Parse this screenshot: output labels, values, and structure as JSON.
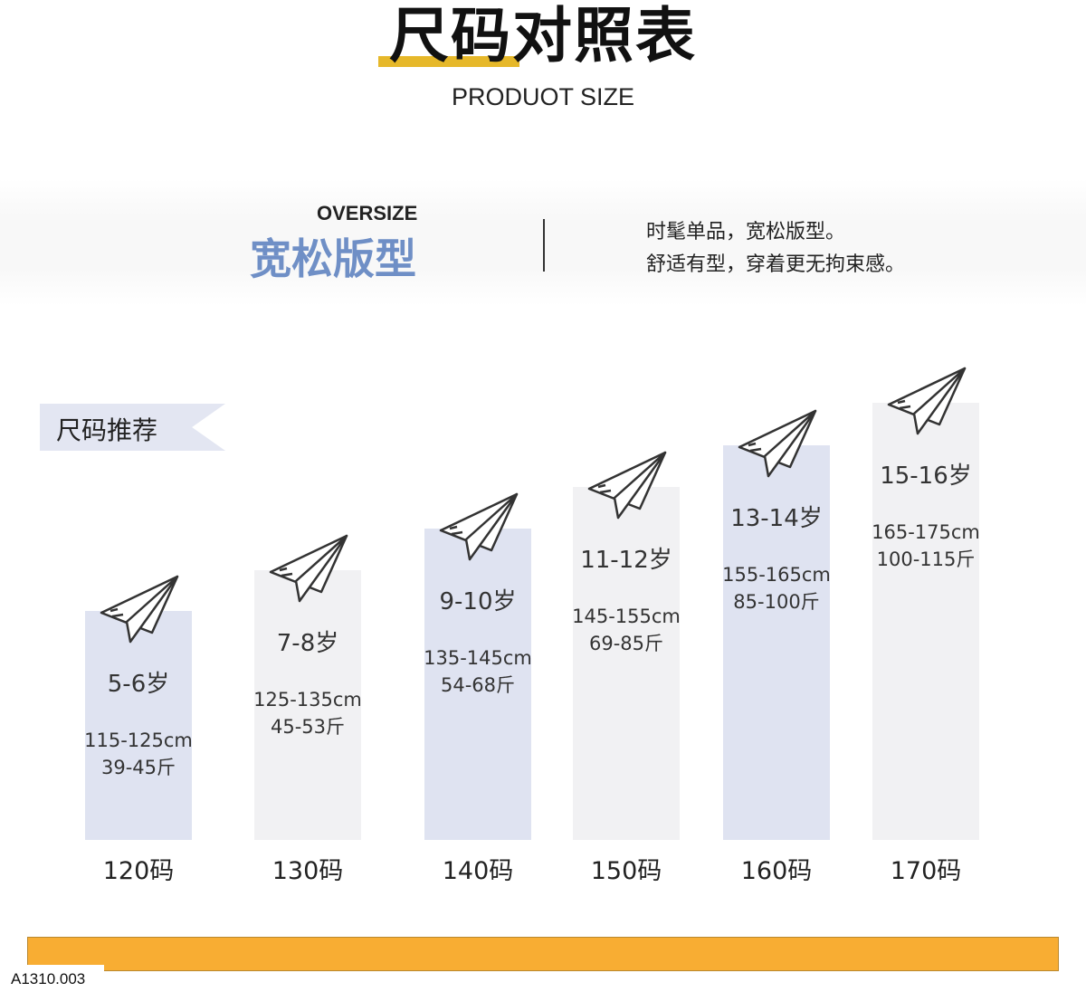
{
  "header": {
    "title": "尺码对照表",
    "subtitle": "PRODUOT SIZE",
    "accent_color": "#e6b82a"
  },
  "style": {
    "label_en": "OVERSIZE",
    "label_cn": "宽松版型",
    "desc_line1": "时髦单品，宽松版型。",
    "desc_line2": "舒适有型，穿着更无拘束感。",
    "accent_color": "#6f8fc6"
  },
  "recommend_tag": "尺码推荐",
  "sizes": [
    {
      "size": "120码",
      "age": "5-6岁",
      "height": "115-125cm",
      "weight": "39-45斤",
      "color": "#dfe3f1"
    },
    {
      "size": "130码",
      "age": "7-8岁",
      "height": "125-135cm",
      "weight": "45-53斤",
      "color": "#f1f1f3"
    },
    {
      "size": "140码",
      "age": "9-10岁",
      "height": "135-145cm",
      "weight": "54-68斤",
      "color": "#dfe3f1"
    },
    {
      "size": "150码",
      "age": "11-12岁",
      "height": "145-155cm",
      "weight": "69-85斤",
      "color": "#f1f1f3"
    },
    {
      "size": "160码",
      "age": "13-14岁",
      "height": "155-165cm",
      "weight": "85-100斤",
      "color": "#dfe3f1"
    },
    {
      "size": "170码",
      "age": "15-16岁",
      "height": "165-175cm",
      "weight": "100-115斤",
      "color": "#f1f1f3"
    }
  ],
  "icon": "paper-plane-icon",
  "footer": {
    "bar_color": "#f8ad33",
    "code": "A1310.003"
  }
}
